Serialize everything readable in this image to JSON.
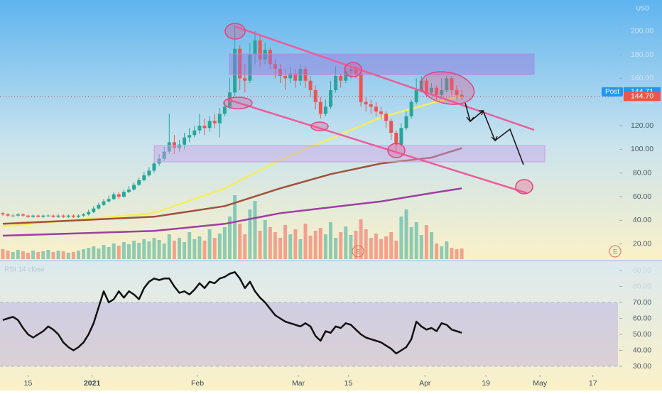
{
  "chart_data": [
    {
      "type": "candlestick",
      "currency": "USD",
      "open": [
        46,
        45,
        44,
        44,
        45,
        44,
        43,
        44,
        43,
        44,
        44,
        43,
        44,
        43,
        44,
        43,
        44,
        45,
        47,
        50,
        53,
        56,
        58,
        62,
        60,
        64,
        66,
        70,
        74,
        78,
        82,
        88,
        92,
        98,
        106,
        101,
        104,
        110,
        112,
        116,
        120,
        118,
        124,
        122,
        130,
        136,
        148,
        185,
        160,
        158,
        180,
        192,
        176,
        184,
        172,
        168,
        162,
        160,
        164,
        158,
        168,
        158,
        150,
        140,
        130,
        136,
        150,
        162,
        158,
        166,
        168,
        164,
        140,
        138,
        136,
        132,
        130,
        124,
        114,
        104,
        118,
        128,
        140,
        150,
        158,
        148,
        152,
        146,
        150,
        160,
        150,
        146
      ],
      "high": [
        47,
        46,
        45,
        46,
        46,
        45,
        45,
        45,
        45,
        45,
        45,
        45,
        45,
        45,
        45,
        45,
        46,
        49,
        52,
        55,
        58,
        61,
        64,
        64,
        66,
        69,
        72,
        76,
        81,
        85,
        92,
        96,
        102,
        130,
        112,
        108,
        114,
        118,
        120,
        130,
        126,
        128,
        130,
        135,
        140,
        160,
        205,
        188,
        172,
        190,
        200,
        196,
        190,
        186,
        176,
        172,
        168,
        170,
        168,
        172,
        170,
        162,
        154,
        144,
        142,
        158,
        170,
        164,
        170,
        172,
        170,
        166,
        144,
        142,
        140,
        136,
        132,
        126,
        116,
        122,
        132,
        142,
        160,
        162,
        160,
        156,
        154,
        160,
        162,
        162,
        154,
        150
      ],
      "low": [
        44,
        43,
        43,
        43,
        43,
        42,
        42,
        42,
        42,
        43,
        42,
        42,
        42,
        42,
        42,
        42,
        43,
        44,
        46,
        49,
        52,
        55,
        57,
        58,
        59,
        63,
        65,
        69,
        73,
        77,
        80,
        86,
        90,
        96,
        96,
        98,
        100,
        106,
        110,
        113,
        112,
        115,
        118,
        110,
        128,
        134,
        145,
        150,
        148,
        156,
        172,
        170,
        172,
        168,
        160,
        156,
        150,
        156,
        152,
        154,
        152,
        144,
        134,
        126,
        128,
        134,
        148,
        152,
        156,
        160,
        160,
        136,
        132,
        130,
        128,
        126,
        118,
        108,
        98,
        102,
        116,
        126,
        138,
        148,
        144,
        146,
        142,
        144,
        148,
        146,
        142,
        142
      ],
      "close": [
        45,
        44,
        44,
        45,
        44,
        43,
        44,
        43,
        44,
        44,
        43,
        44,
        43,
        44,
        43,
        44,
        45,
        47,
        50,
        53,
        56,
        58,
        62,
        60,
        64,
        66,
        70,
        74,
        78,
        82,
        88,
        92,
        98,
        106,
        101,
        104,
        110,
        112,
        116,
        120,
        118,
        124,
        122,
        130,
        136,
        148,
        185,
        160,
        158,
        180,
        192,
        176,
        184,
        172,
        168,
        162,
        160,
        164,
        158,
        168,
        158,
        150,
        140,
        130,
        136,
        150,
        162,
        158,
        166,
        168,
        164,
        140,
        138,
        136,
        132,
        130,
        124,
        114,
        104,
        118,
        128,
        140,
        150,
        158,
        148,
        152,
        146,
        150,
        160,
        150,
        146,
        144.7
      ],
      "volume": [
        14,
        12,
        10,
        13,
        11,
        9,
        12,
        10,
        11,
        13,
        10,
        12,
        11,
        9,
        10,
        12,
        14,
        16,
        18,
        15,
        20,
        17,
        22,
        19,
        24,
        21,
        26,
        23,
        28,
        25,
        30,
        27,
        22,
        35,
        26,
        30,
        24,
        38,
        28,
        32,
        26,
        42,
        30,
        36,
        45,
        60,
        90,
        50,
        35,
        70,
        82,
        40,
        55,
        45,
        38,
        30,
        48,
        35,
        42,
        28,
        50,
        33,
        40,
        44,
        35,
        52,
        30,
        38,
        46,
        34,
        40,
        56,
        42,
        30,
        36,
        28,
        32,
        38,
        26,
        60,
        70,
        45,
        52,
        34,
        48,
        38,
        22,
        18,
        25,
        16,
        14,
        15
      ],
      "vlim": [
        0,
        120
      ],
      "up_color": "#26a69a",
      "down_color": "#ef5350",
      "ylim": [
        7.2,
        226.2
      ],
      "yticks": [
        {
          "value": 20,
          "label": "20.00"
        },
        {
          "value": 40,
          "label": "40.00"
        },
        {
          "value": 60,
          "label": "60.00"
        },
        {
          "value": 80,
          "label": "80.00"
        },
        {
          "value": 100,
          "label": "100.00"
        },
        {
          "value": 120,
          "label": "120.00"
        },
        {
          "value": 140,
          "label": "140.00"
        },
        {
          "value": 160,
          "label": "160.00"
        },
        {
          "value": 180,
          "label": "180.00"
        },
        {
          "value": 200,
          "label": "200.00"
        }
      ],
      "xlim": [
        -0.56,
        121.97
      ],
      "xticks": [
        {
          "value": 5,
          "label": "15"
        },
        {
          "value": 17.7,
          "label": "2021"
        },
        {
          "value": 38.6,
          "label": "Feb"
        },
        {
          "value": 58.6,
          "label": "Mar"
        },
        {
          "value": 68.5,
          "label": "15"
        },
        {
          "value": 83.7,
          "label": "Apr"
        },
        {
          "value": 95.8,
          "label": "19"
        },
        {
          "value": 106.5,
          "label": "May"
        },
        {
          "value": 117,
          "label": "17"
        }
      ],
      "moving_averages": [
        {
          "color": "#f5ee5a",
          "x": [
            0,
            30,
            44,
            55,
            65,
            75,
            85,
            91
          ],
          "values": [
            35,
            46,
            67,
            91,
            109,
            127,
            139,
            145
          ]
        },
        {
          "color": "#a0503c",
          "x": [
            0,
            30,
            44,
            55,
            65,
            75,
            85,
            91
          ],
          "values": [
            37,
            43,
            52,
            67,
            79,
            88,
            93,
            101
          ]
        },
        {
          "color": "#9c3fa0",
          "x": [
            0,
            30,
            44,
            55,
            65,
            75,
            85,
            91
          ],
          "values": [
            27,
            31,
            37,
            46,
            51,
            56,
            63,
            67
          ]
        }
      ],
      "post_label": "Post",
      "post_price": 144.71,
      "last_price": {
        "value": 144.7,
        "label": "144.70"
      },
      "earnings_label": "E"
    },
    {
      "type": "line",
      "title": "RSI 14 close",
      "color": "#111111",
      "values": [
        59,
        60,
        61,
        59,
        54,
        50,
        48,
        50,
        52,
        55,
        53,
        50,
        45,
        42,
        40,
        42,
        45,
        50,
        57,
        67,
        77,
        70,
        72,
        77,
        73,
        77,
        75,
        72,
        79,
        83,
        85,
        84,
        85,
        85,
        80,
        76,
        77,
        75,
        78,
        82,
        79,
        83,
        82,
        85,
        86,
        88,
        89,
        85,
        79,
        83,
        77,
        73,
        70,
        66,
        62,
        60,
        58,
        57,
        56,
        55,
        57,
        55,
        49,
        46,
        52,
        51,
        55,
        54,
        57,
        56,
        53,
        50,
        48,
        47,
        46,
        45,
        43,
        41,
        38,
        40,
        42,
        47,
        58,
        55,
        53,
        54,
        52,
        57,
        56,
        53,
        52,
        51
      ],
      "ylim": [
        24.67,
        95.78
      ],
      "band": [
        30,
        70
      ],
      "yticks": [
        {
          "value": 30,
          "label": "30.00"
        },
        {
          "value": 40,
          "label": "40.00"
        },
        {
          "value": 50,
          "label": "50.00"
        },
        {
          "value": 60,
          "label": "60.00"
        },
        {
          "value": 70,
          "label": "70.00"
        },
        {
          "value": 80,
          "label": "80.00"
        },
        {
          "value": 90,
          "label": "90.00"
        }
      ]
    }
  ]
}
